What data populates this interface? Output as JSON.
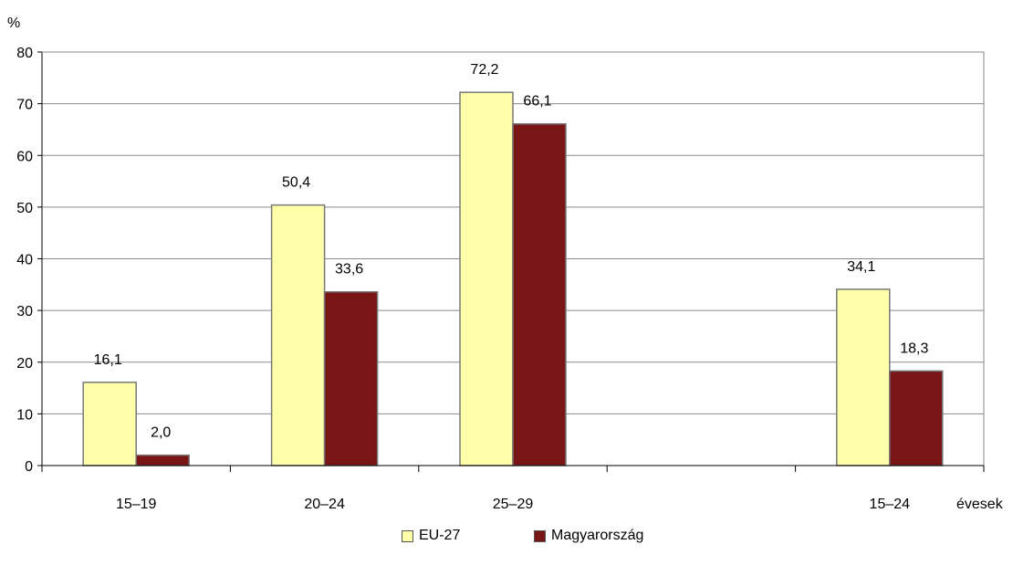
{
  "chart_data": {
    "type": "bar",
    "ylabel": "%",
    "xlabel": "évesek",
    "ylim": [
      0,
      80
    ],
    "yticks": [
      "0",
      "10",
      "20",
      "30",
      "40",
      "50",
      "60",
      "70",
      "80"
    ],
    "categories": [
      "15–19",
      "20–24",
      "25–29",
      "",
      "15–24"
    ],
    "series": [
      {
        "name": "EU-27",
        "color": "#FFFFAA",
        "values": [
          16.1,
          50.4,
          72.2,
          null,
          34.1
        ],
        "labels": [
          "16,1",
          "50,4",
          "72,2",
          "",
          "34,1"
        ]
      },
      {
        "name": "Magyarország",
        "color": "#7A1515",
        "values": [
          2.0,
          33.6,
          66.1,
          null,
          18.3
        ],
        "labels": [
          "2,0",
          "33,6",
          "66,1",
          "",
          "18,3"
        ]
      }
    ],
    "grid": true,
    "legend_position": "bottom-center"
  }
}
